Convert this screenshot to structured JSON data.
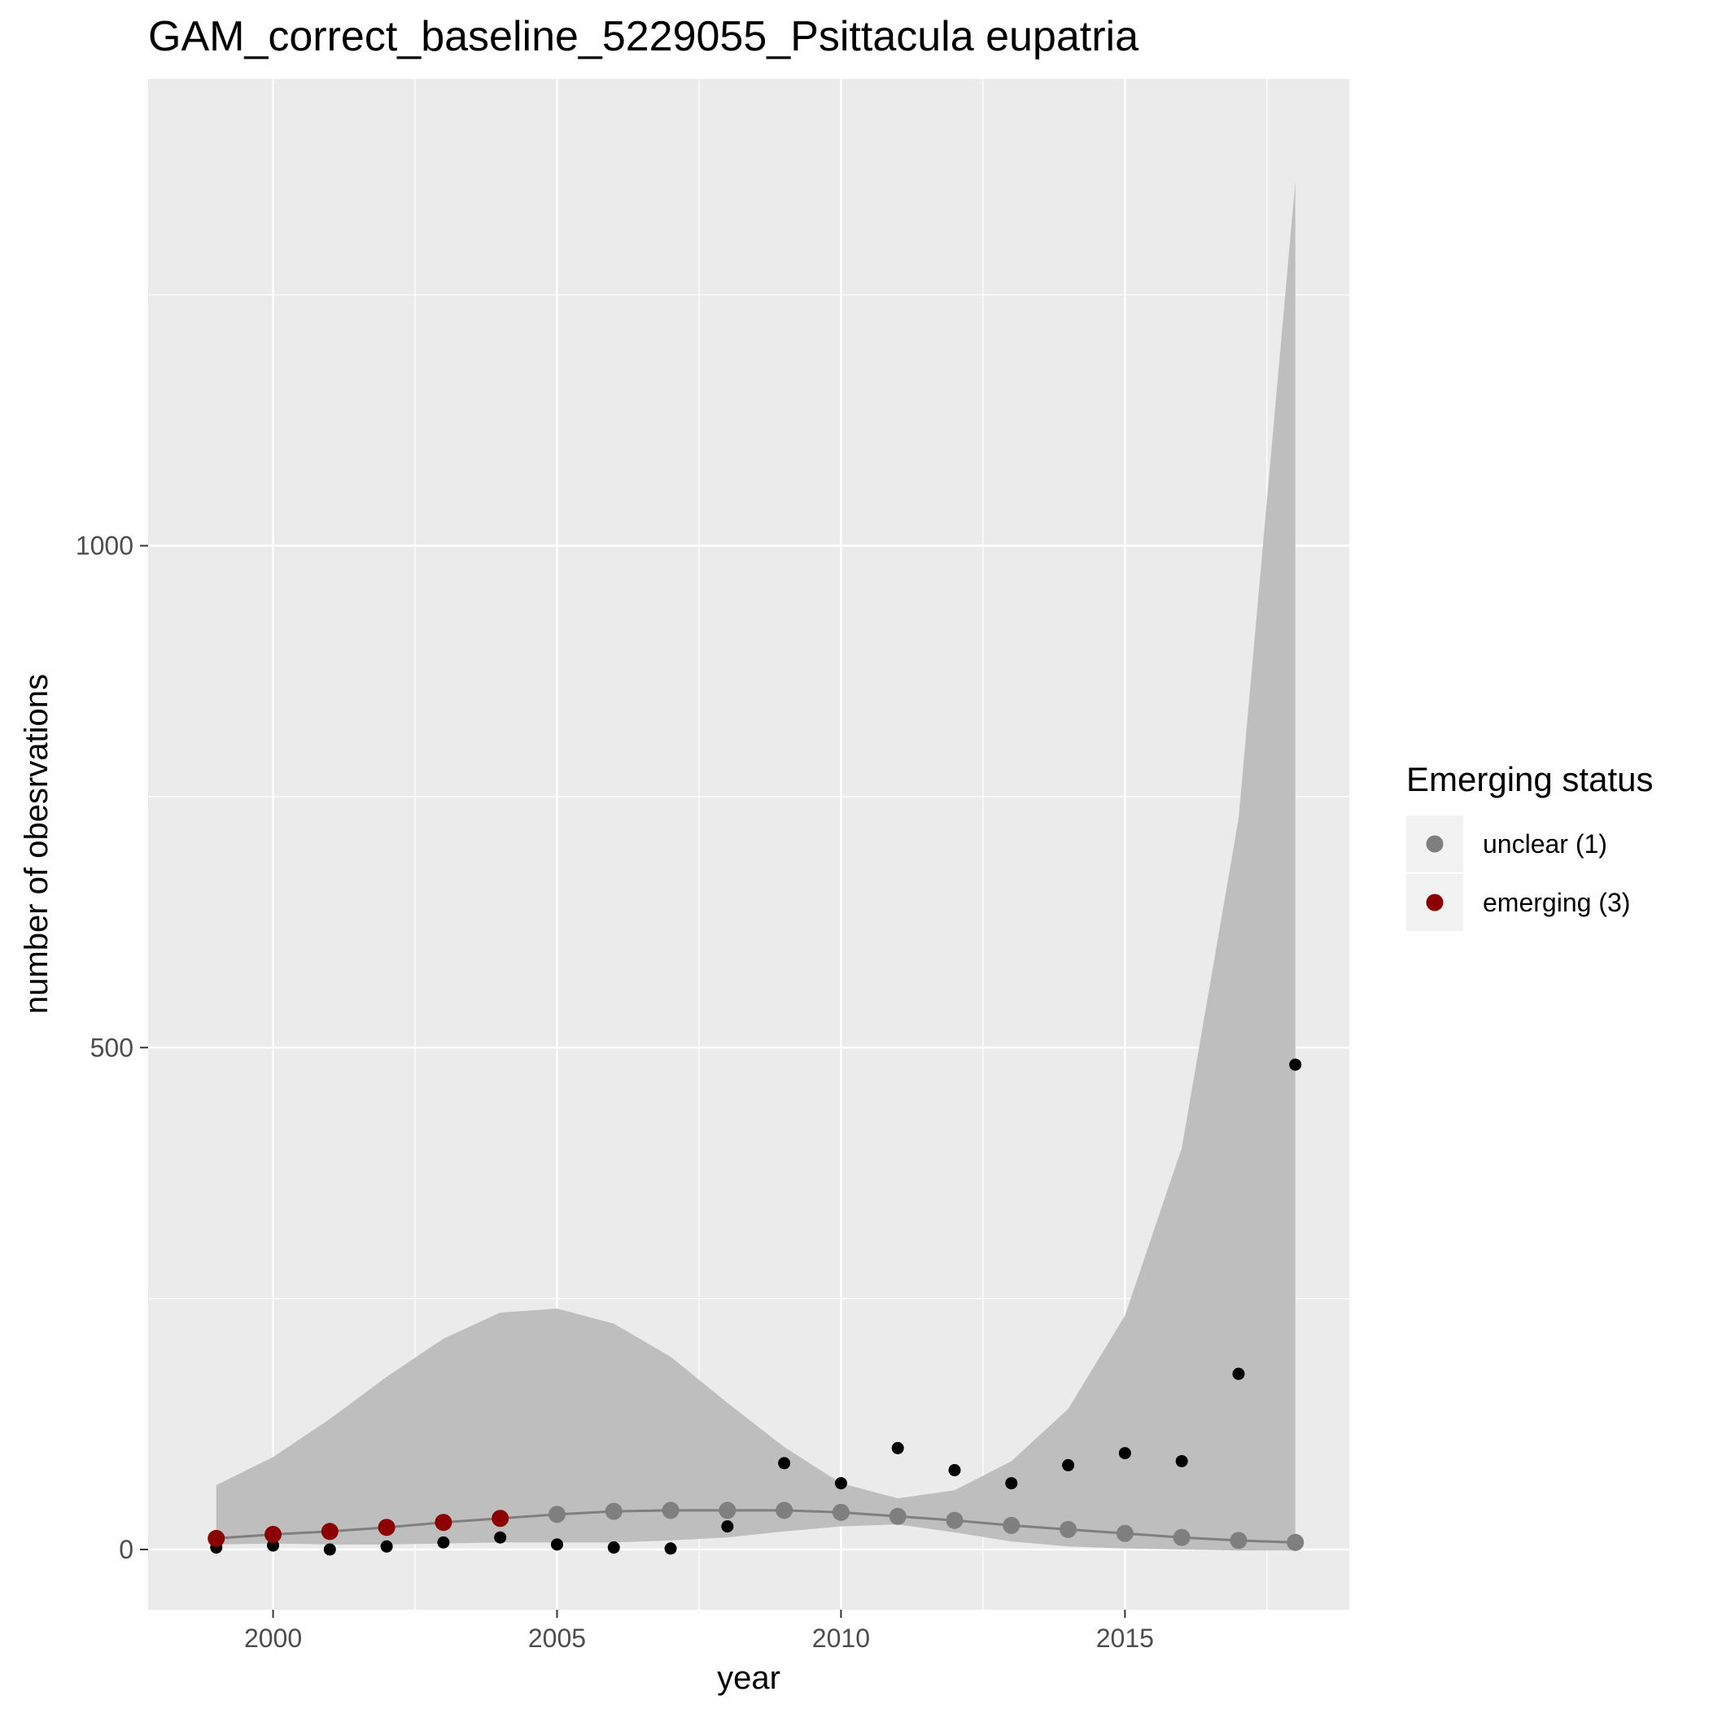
{
  "chart_data": {
    "type": "scatter",
    "title": "GAM_correct_baseline_5229055_Psittacula eupatria",
    "xlabel": "year",
    "ylabel": "number of obesrvations",
    "xlim": [
      1997.8,
      2018.95
    ],
    "ylim": [
      -60,
      1465
    ],
    "x_ticks": [
      2000,
      2005,
      2010,
      2015
    ],
    "y_ticks": [
      0,
      500,
      1000
    ],
    "grid": true,
    "legend": {
      "title": "Emerging status",
      "placement": "right",
      "entries": [
        {
          "label": "unclear (1)",
          "color": "#7f7f7f"
        },
        {
          "label": "emerging (3)",
          "color": "#8b0000"
        }
      ]
    },
    "observations": {
      "color": "#000000",
      "x": [
        1999,
        2000,
        2001,
        2002,
        2003,
        2004,
        2005,
        2006,
        2007,
        2008,
        2009,
        2010,
        2011,
        2012,
        2013,
        2014,
        2015,
        2016,
        2017,
        2018
      ],
      "y": [
        2,
        4,
        0,
        3,
        7,
        12,
        5,
        2,
        1,
        23,
        86,
        66,
        101,
        79,
        66,
        84,
        96,
        88,
        175,
        483
      ]
    },
    "gam_fit": {
      "line_color": "#7f7f7f",
      "ribbon_color": "#bebebe",
      "x": [
        1999,
        2000,
        2001,
        2002,
        2003,
        2004,
        2005,
        2006,
        2007,
        2008,
        2009,
        2010,
        2011,
        2012,
        2013,
        2014,
        2015,
        2016,
        2017,
        2018
      ],
      "fit": [
        11,
        15,
        18,
        22,
        27,
        31,
        35,
        38,
        39,
        39,
        39,
        37,
        33,
        29,
        24,
        20,
        16,
        12,
        9,
        7
      ],
      "lower": [
        5,
        6,
        5,
        5,
        6,
        7,
        7,
        7,
        9,
        12,
        18,
        23,
        25,
        17,
        8,
        3,
        1,
        0,
        -1,
        -1
      ],
      "upper": [
        64,
        92,
        130,
        172,
        210,
        236,
        240,
        225,
        192,
        146,
        102,
        66,
        51,
        59,
        88,
        140,
        233,
        400,
        728,
        1363
      ],
      "status": [
        "emerging (3)",
        "emerging (3)",
        "emerging (3)",
        "emerging (3)",
        "emerging (3)",
        "emerging (3)",
        "unclear (1)",
        "unclear (1)",
        "unclear (1)",
        "unclear (1)",
        "unclear (1)",
        "unclear (1)",
        "unclear (1)",
        "unclear (1)",
        "unclear (1)",
        "unclear (1)",
        "unclear (1)",
        "unclear (1)",
        "unclear (1)",
        "unclear (1)"
      ]
    }
  }
}
